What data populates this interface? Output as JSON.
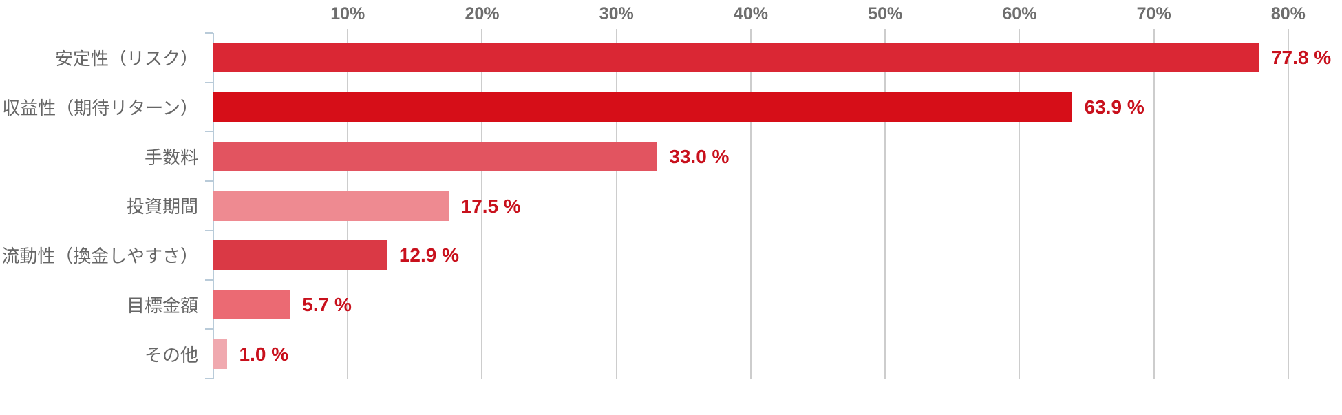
{
  "chart_data": {
    "type": "bar",
    "orientation": "horizontal",
    "title": "",
    "xlabel": "",
    "ylabel": "",
    "axis_position": "top",
    "grid": true,
    "xlim": [
      0,
      84
    ],
    "categories": [
      "安定性（リスク）",
      "収益性（期待リターン）",
      "手数料",
      "投資期間",
      "流動性（換金しやすさ）",
      "目標金額",
      "その他"
    ],
    "values": [
      77.8,
      63.9,
      33.0,
      17.5,
      12.9,
      5.7,
      1.0
    ],
    "value_labels": [
      "77.8 %",
      "63.9 %",
      "33.0 %",
      "17.5 %",
      "12.9 %",
      "5.7 %",
      "1.0 %"
    ],
    "bar_colors": [
      "#DA2734",
      "#D60E18",
      "#E25460",
      "#EE8A91",
      "#DA3945",
      "#EB6A73",
      "#F0A9AF"
    ],
    "x_ticks": [
      {
        "label": "10%",
        "value": 10
      },
      {
        "label": "20%",
        "value": 20
      },
      {
        "label": "30%",
        "value": 30
      },
      {
        "label": "40%",
        "value": 40
      },
      {
        "label": "50%",
        "value": 50
      },
      {
        "label": "60%",
        "value": 60
      },
      {
        "label": "70%",
        "value": 70
      },
      {
        "label": "80%",
        "value": 80
      }
    ],
    "colors": {
      "value_label": "#C8101C",
      "tick_label": "#6E6E6E",
      "category_label": "#666666",
      "gridline": "#CDCDCD",
      "axis_line": "#B9CBD9",
      "background": "#FFFFFF"
    }
  }
}
